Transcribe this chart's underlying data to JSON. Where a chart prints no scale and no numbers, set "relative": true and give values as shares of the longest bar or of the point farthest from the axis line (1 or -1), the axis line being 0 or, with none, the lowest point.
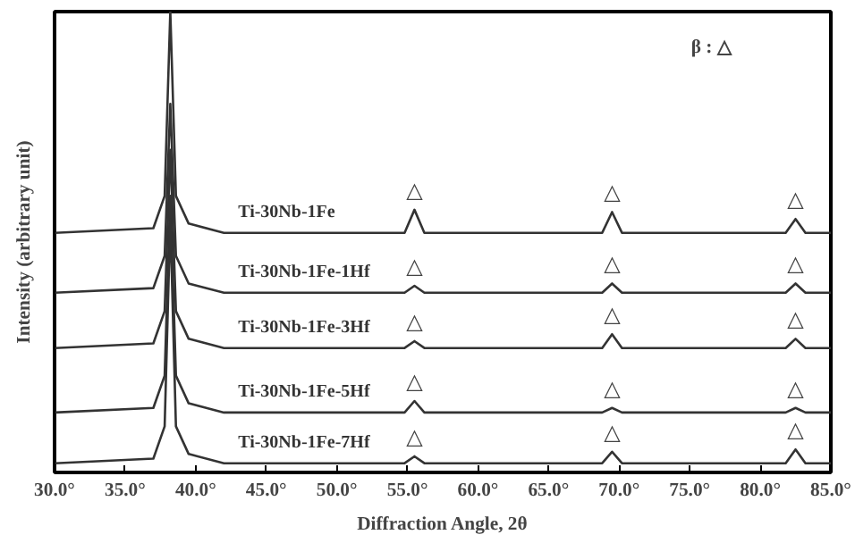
{
  "chart_data": {
    "type": "line",
    "relative": true,
    "xlabel": "Diffraction Angle, 2θ",
    "ylabel": "Intensity (arbitrary unit)",
    "x": [
      30,
      37,
      37.8,
      38.2,
      38.6,
      39.5,
      42,
      54.8,
      55.5,
      56.2,
      68.8,
      69.5,
      70.2,
      81.8,
      82.5,
      83.2,
      85
    ],
    "xlim": [
      30,
      85
    ],
    "xticks": [
      {
        "value": 30,
        "label": "30.0°"
      },
      {
        "value": 35,
        "label": "35.0°"
      },
      {
        "value": 40,
        "label": "40.0°"
      },
      {
        "value": 45,
        "label": "45.0°"
      },
      {
        "value": 50,
        "label": "50.0°"
      },
      {
        "value": 55,
        "label": "55.0°"
      },
      {
        "value": 60,
        "label": "60.0°"
      },
      {
        "value": 65,
        "label": "65.0°"
      },
      {
        "value": 70,
        "label": "70.0°"
      },
      {
        "value": 75,
        "label": "75.0°"
      },
      {
        "value": 80,
        "label": "80.0°"
      },
      {
        "value": 85,
        "label": "85.0°"
      }
    ],
    "tick_labels": "x",
    "grid": false,
    "marker": "none",
    "line_style": "solid",
    "series": [
      {
        "name": "Ti-30Nb-1Fe",
        "color": "#333333",
        "values": [
          0.52,
          0.53,
          0.6,
          1.0,
          0.6,
          0.54,
          0.52,
          0.52,
          0.57,
          0.52,
          0.52,
          0.565,
          0.52,
          0.52,
          0.55,
          0.52,
          0.52
        ]
      },
      {
        "name": "Ti-30Nb-1Fe-1Hf",
        "color": "#333333",
        "values": [
          0.39,
          0.4,
          0.47,
          0.8,
          0.47,
          0.41,
          0.39,
          0.39,
          0.405,
          0.39,
          0.39,
          0.41,
          0.39,
          0.39,
          0.41,
          0.39,
          0.39
        ]
      },
      {
        "name": "Ti-30Nb-1Fe-3Hf",
        "color": "#333333",
        "values": [
          0.27,
          0.28,
          0.35,
          0.7,
          0.35,
          0.29,
          0.27,
          0.27,
          0.285,
          0.27,
          0.27,
          0.3,
          0.27,
          0.27,
          0.29,
          0.27,
          0.27
        ]
      },
      {
        "name": "Ti-30Nb-1Fe-5Hf",
        "color": "#333333",
        "values": [
          0.13,
          0.14,
          0.21,
          0.6,
          0.21,
          0.15,
          0.13,
          0.13,
          0.155,
          0.13,
          0.13,
          0.14,
          0.13,
          0.13,
          0.14,
          0.13,
          0.13
        ]
      },
      {
        "name": "Ti-30Nb-1Fe-7Hf",
        "color": "#333333",
        "values": [
          0.02,
          0.03,
          0.1,
          0.55,
          0.1,
          0.04,
          0.02,
          0.02,
          0.035,
          0.02,
          0.02,
          0.045,
          0.02,
          0.02,
          0.05,
          0.02,
          0.02
        ]
      }
    ],
    "annotations": [
      "β : △",
      {
        "text": "△",
        "x": 55.5,
        "y": 0.57
      },
      {
        "text": "△",
        "x": 69.5,
        "y": 0.565
      },
      {
        "text": "△",
        "x": 82.5,
        "y": 0.55
      },
      {
        "text": "△",
        "x": 55.5,
        "y": 0.405
      },
      {
        "text": "△",
        "x": 69.5,
        "y": 0.41
      },
      {
        "text": "△",
        "x": 82.5,
        "y": 0.41
      },
      {
        "text": "△",
        "x": 55.5,
        "y": 0.285
      },
      {
        "text": "△",
        "x": 69.5,
        "y": 0.3
      },
      {
        "text": "△",
        "x": 82.5,
        "y": 0.29
      },
      {
        "text": "△",
        "x": 55.5,
        "y": 0.155
      },
      {
        "text": "△",
        "x": 69.5,
        "y": 0.14
      },
      {
        "text": "△",
        "x": 82.5,
        "y": 0.14
      },
      {
        "text": "△",
        "x": 55.5,
        "y": 0.035
      },
      {
        "text": "△",
        "x": 69.5,
        "y": 0.045
      },
      {
        "text": "△",
        "x": 82.5,
        "y": 0.05
      }
    ]
  }
}
